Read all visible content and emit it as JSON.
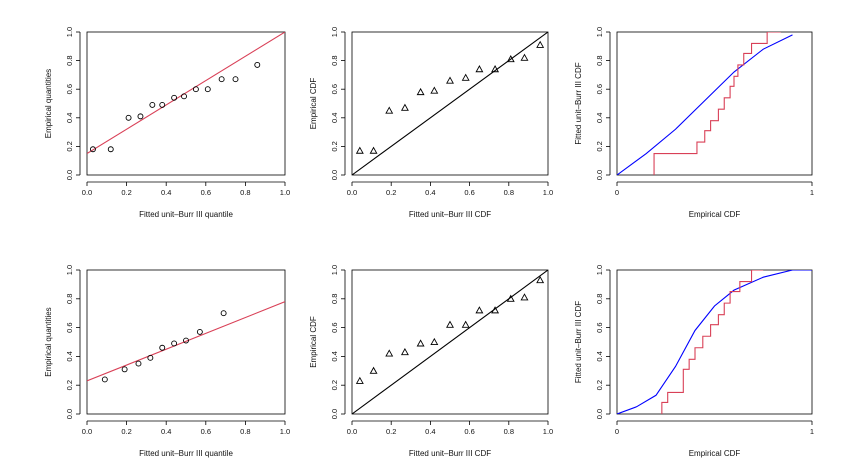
{
  "chart_data": [
    {
      "type": "scatter",
      "xlabel": "Fitted unit–Burr III quantile",
      "ylabel": "Empirical quantities",
      "xlim": [
        0,
        1
      ],
      "ylim": [
        0,
        1
      ],
      "xticks": [
        "0.0",
        "0.2",
        "0.4",
        "0.6",
        "0.8",
        "1.0"
      ],
      "yticks": [
        "0.0",
        "0.2",
        "0.4",
        "0.6",
        "0.8",
        "1.0"
      ],
      "series": [
        {
          "marker": "circle",
          "color": "#000000",
          "x": [
            0.03,
            0.12,
            0.21,
            0.27,
            0.33,
            0.38,
            0.44,
            0.49,
            0.55,
            0.61,
            0.68,
            0.75,
            0.86
          ],
          "y": [
            0.18,
            0.18,
            0.4,
            0.41,
            0.49,
            0.49,
            0.54,
            0.55,
            0.6,
            0.6,
            0.67,
            0.67,
            0.77
          ]
        },
        {
          "line": "reference",
          "color": "#d94057",
          "x": [
            0,
            1
          ],
          "y": [
            0.15,
            1.0
          ]
        }
      ]
    },
    {
      "type": "scatter",
      "xlabel": "Fitted unit–Burr III CDF",
      "ylabel": "Empirical CDF",
      "xlim": [
        0,
        1
      ],
      "ylim": [
        0,
        1
      ],
      "xticks": [
        "0.0",
        "0.2",
        "0.4",
        "0.6",
        "0.8",
        "1.0"
      ],
      "yticks": [
        "0.0",
        "0.2",
        "0.4",
        "0.6",
        "0.8",
        "1.0"
      ],
      "series": [
        {
          "marker": "triangle",
          "color": "#000000",
          "x": [
            0.04,
            0.11,
            0.19,
            0.27,
            0.35,
            0.42,
            0.5,
            0.58,
            0.65,
            0.73,
            0.81,
            0.88,
            0.96
          ],
          "y": [
            0.17,
            0.17,
            0.45,
            0.47,
            0.58,
            0.59,
            0.66,
            0.68,
            0.74,
            0.74,
            0.81,
            0.82,
            0.91
          ]
        },
        {
          "line": "reference",
          "color": "#000000",
          "x": [
            0,
            1
          ],
          "y": [
            0,
            1
          ]
        }
      ]
    },
    {
      "type": "line",
      "xlabel": "Empirical CDF",
      "ylabel": "Fitted unit–Burr III CDF",
      "xlim": [
        0,
        1
      ],
      "ylim": [
        0,
        1
      ],
      "xticks": [
        "0",
        "1"
      ],
      "yticks": [
        "0.0",
        "0.2",
        "0.4",
        "0.6",
        "0.8",
        "1.0"
      ],
      "series": [
        {
          "color": "#0000ff",
          "x": [
            0.0,
            0.15,
            0.3,
            0.45,
            0.6,
            0.75,
            0.9
          ],
          "y": [
            0.0,
            0.15,
            0.32,
            0.52,
            0.72,
            0.88,
            0.98
          ]
        },
        {
          "step": true,
          "color": "#d94057",
          "x": [
            0.19,
            0.19,
            0.41,
            0.41,
            0.45,
            0.45,
            0.48,
            0.48,
            0.52,
            0.52,
            0.55,
            0.55,
            0.58,
            0.58,
            0.6,
            0.6,
            0.62,
            0.62,
            0.65,
            0.65,
            0.69,
            0.69,
            0.77,
            0.77,
            0.84
          ],
          "y": [
            0.0,
            0.15,
            0.15,
            0.23,
            0.23,
            0.31,
            0.31,
            0.38,
            0.38,
            0.46,
            0.46,
            0.54,
            0.54,
            0.62,
            0.62,
            0.69,
            0.69,
            0.77,
            0.77,
            0.85,
            0.85,
            0.92,
            0.92,
            1.0,
            1.0
          ]
        }
      ]
    },
    {
      "type": "scatter",
      "xlabel": "Fitted unit–Burr III quantile",
      "ylabel": "Empirical quantities",
      "xlim": [
        0,
        1
      ],
      "ylim": [
        0,
        1
      ],
      "xticks": [
        "0.0",
        "0.2",
        "0.4",
        "0.6",
        "0.8",
        "1.0"
      ],
      "yticks": [
        "0.0",
        "0.2",
        "0.4",
        "0.6",
        "0.8",
        "1.0"
      ],
      "series": [
        {
          "marker": "circle",
          "color": "#000000",
          "x": [
            0.09,
            0.19,
            0.26,
            0.32,
            0.38,
            0.44,
            0.5,
            0.57,
            0.69
          ],
          "y": [
            0.24,
            0.31,
            0.35,
            0.39,
            0.46,
            0.49,
            0.51,
            0.57,
            0.7
          ]
        },
        {
          "line": "reference",
          "color": "#d94057",
          "x": [
            0,
            1
          ],
          "y": [
            0.23,
            0.78
          ]
        }
      ]
    },
    {
      "type": "scatter",
      "xlabel": "Fitted unit–Burr III CDF",
      "ylabel": "Empirical CDF",
      "xlim": [
        0,
        1
      ],
      "ylim": [
        0,
        1
      ],
      "xticks": [
        "0.0",
        "0.2",
        "0.4",
        "0.6",
        "0.8",
        "1.0"
      ],
      "yticks": [
        "0.0",
        "0.2",
        "0.4",
        "0.6",
        "0.8",
        "1.0"
      ],
      "series": [
        {
          "marker": "triangle",
          "color": "#000000",
          "x": [
            0.04,
            0.11,
            0.19,
            0.27,
            0.35,
            0.42,
            0.5,
            0.58,
            0.65,
            0.73,
            0.81,
            0.88,
            0.96
          ],
          "y": [
            0.23,
            0.3,
            0.42,
            0.43,
            0.49,
            0.5,
            0.62,
            0.62,
            0.72,
            0.72,
            0.8,
            0.81,
            0.93
          ]
        },
        {
          "line": "reference",
          "color": "#000000",
          "x": [
            0,
            1
          ],
          "y": [
            0,
            1
          ]
        }
      ]
    },
    {
      "type": "line",
      "xlabel": "Empirical CDF",
      "ylabel": "Fitted unit–Burr III CDF",
      "xlim": [
        0,
        1
      ],
      "ylim": [
        0,
        1
      ],
      "xticks": [
        "0",
        "1"
      ],
      "yticks": [
        "0.0",
        "0.2",
        "0.4",
        "0.6",
        "0.8",
        "1.0"
      ],
      "series": [
        {
          "color": "#0000ff",
          "x": [
            0.0,
            0.1,
            0.2,
            0.3,
            0.4,
            0.5,
            0.6,
            0.75,
            0.9,
            1.0
          ],
          "y": [
            0.0,
            0.05,
            0.13,
            0.33,
            0.58,
            0.75,
            0.86,
            0.95,
            1.0,
            1.0
          ]
        },
        {
          "step": true,
          "color": "#d94057",
          "x": [
            0.23,
            0.23,
            0.26,
            0.26,
            0.29,
            0.29,
            0.34,
            0.34,
            0.37,
            0.37,
            0.4,
            0.4,
            0.44,
            0.44,
            0.48,
            0.48,
            0.52,
            0.52,
            0.55,
            0.55,
            0.58,
            0.58,
            0.63,
            0.63,
            0.69,
            0.69,
            0.75
          ],
          "y": [
            0.0,
            0.08,
            0.08,
            0.15,
            0.15,
            0.15,
            0.15,
            0.31,
            0.31,
            0.38,
            0.38,
            0.46,
            0.46,
            0.54,
            0.54,
            0.62,
            0.62,
            0.69,
            0.69,
            0.77,
            0.77,
            0.85,
            0.85,
            0.92,
            0.92,
            1.0,
            1.0
          ]
        }
      ]
    }
  ]
}
